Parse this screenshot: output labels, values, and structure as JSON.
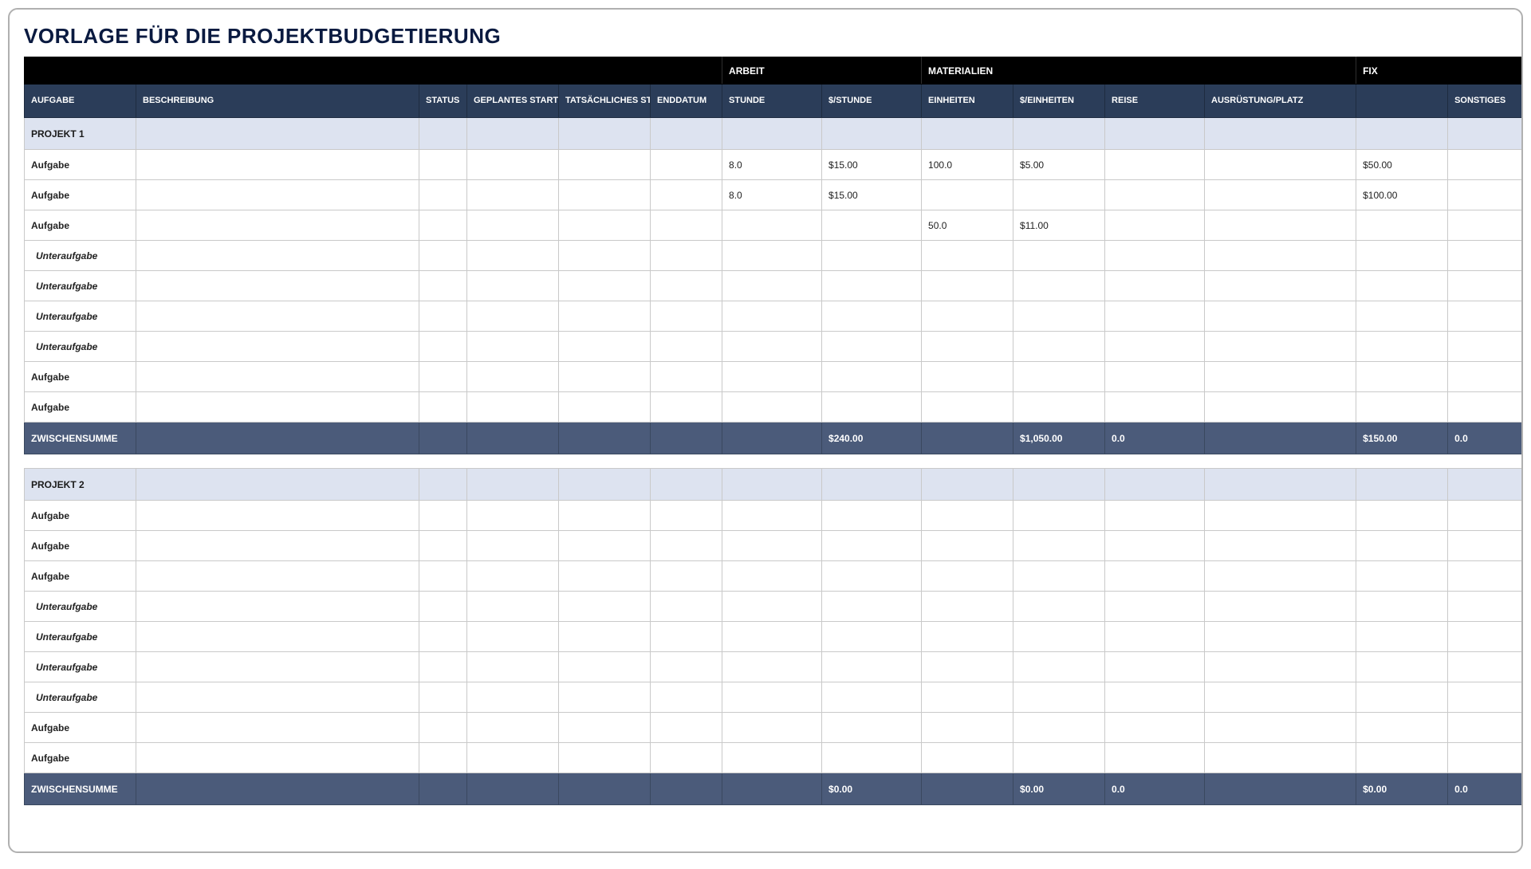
{
  "title": "VORLAGE FÜR DIE PROJEKTBUDGETIERUNG",
  "colors": {
    "group_header_bg": "#000000",
    "col_header_bg": "#2b3d59",
    "section_bg": "#dde3f0",
    "subtotal_bg": "#4b5b7a",
    "border": "#c9c9c9",
    "title_color": "#0a1a40"
  },
  "group_headers": {
    "blank1": "",
    "arbeit": "ARBEIT",
    "materialien": "MATERIALIEN",
    "fix": "FIX"
  },
  "columns": {
    "aufgabe": "AUFGABE",
    "beschreibung": "BESCHREIBUNG",
    "status": "STATUS",
    "geplantes_start": "GEPLANTES STARTDATUM",
    "tatsaechliches_start": "TATSÄCHLICHES STARTDATUM",
    "enddatum": "ENDDATUM",
    "stunde": "STUNDE",
    "pro_stunde": "$/STUNDE",
    "einheiten": "EINHEITEN",
    "pro_einheiten": "$/EINHEITEN",
    "reise": "REISE",
    "ausruestung": "AUSRÜSTUNG/PLATZ",
    "fix": "",
    "sonstiges": "SONSTIGES"
  },
  "labels": {
    "zwischensumme": "ZWISCHENSUMME",
    "aufgabe": "Aufgabe",
    "unteraufgabe": "Unteraufgabe"
  },
  "projects": [
    {
      "name": "PROJEKT 1",
      "rows": [
        {
          "type": "task",
          "aufgabe": "Aufgabe",
          "stunde": "8.0",
          "pro_stunde": "$15.00",
          "einheiten": "100.0",
          "pro_einheiten": "$5.00",
          "reise": "",
          "ausruestung": "",
          "fix": "$50.00",
          "sonstiges": ""
        },
        {
          "type": "task",
          "aufgabe": "Aufgabe",
          "stunde": "8.0",
          "pro_stunde": "$15.00",
          "einheiten": "",
          "pro_einheiten": "",
          "reise": "",
          "ausruestung": "",
          "fix": "$100.00",
          "sonstiges": ""
        },
        {
          "type": "task",
          "aufgabe": "Aufgabe",
          "stunde": "",
          "pro_stunde": "",
          "einheiten": "50.0",
          "pro_einheiten": "$11.00",
          "reise": "",
          "ausruestung": "",
          "fix": "",
          "sonstiges": ""
        },
        {
          "type": "subtask",
          "aufgabe": "Unteraufgabe",
          "stunde": "",
          "pro_stunde": "",
          "einheiten": "",
          "pro_einheiten": "",
          "reise": "",
          "ausruestung": "",
          "fix": "",
          "sonstiges": ""
        },
        {
          "type": "subtask",
          "aufgabe": "Unteraufgabe",
          "stunde": "",
          "pro_stunde": "",
          "einheiten": "",
          "pro_einheiten": "",
          "reise": "",
          "ausruestung": "",
          "fix": "",
          "sonstiges": ""
        },
        {
          "type": "subtask",
          "aufgabe": "Unteraufgabe",
          "stunde": "",
          "pro_stunde": "",
          "einheiten": "",
          "pro_einheiten": "",
          "reise": "",
          "ausruestung": "",
          "fix": "",
          "sonstiges": ""
        },
        {
          "type": "subtask",
          "aufgabe": "Unteraufgabe",
          "stunde": "",
          "pro_stunde": "",
          "einheiten": "",
          "pro_einheiten": "",
          "reise": "",
          "ausruestung": "",
          "fix": "",
          "sonstiges": ""
        },
        {
          "type": "task",
          "aufgabe": "Aufgabe",
          "stunde": "",
          "pro_stunde": "",
          "einheiten": "",
          "pro_einheiten": "",
          "reise": "",
          "ausruestung": "",
          "fix": "",
          "sonstiges": ""
        },
        {
          "type": "task",
          "aufgabe": "Aufgabe",
          "stunde": "",
          "pro_stunde": "",
          "einheiten": "",
          "pro_einheiten": "",
          "reise": "",
          "ausruestung": "",
          "fix": "",
          "sonstiges": ""
        }
      ],
      "subtotal": {
        "pro_stunde": "$240.00",
        "pro_einheiten": "$1,050.00",
        "reise": "0.0",
        "ausruestung": "",
        "fix": "$150.00",
        "sonstiges": "0.0"
      }
    },
    {
      "name": "PROJEKT 2",
      "rows": [
        {
          "type": "task",
          "aufgabe": "Aufgabe",
          "stunde": "",
          "pro_stunde": "",
          "einheiten": "",
          "pro_einheiten": "",
          "reise": "",
          "ausruestung": "",
          "fix": "",
          "sonstiges": ""
        },
        {
          "type": "task",
          "aufgabe": "Aufgabe",
          "stunde": "",
          "pro_stunde": "",
          "einheiten": "",
          "pro_einheiten": "",
          "reise": "",
          "ausruestung": "",
          "fix": "",
          "sonstiges": ""
        },
        {
          "type": "task",
          "aufgabe": "Aufgabe",
          "stunde": "",
          "pro_stunde": "",
          "einheiten": "",
          "pro_einheiten": "",
          "reise": "",
          "ausruestung": "",
          "fix": "",
          "sonstiges": ""
        },
        {
          "type": "subtask",
          "aufgabe": "Unteraufgabe",
          "stunde": "",
          "pro_stunde": "",
          "einheiten": "",
          "pro_einheiten": "",
          "reise": "",
          "ausruestung": "",
          "fix": "",
          "sonstiges": ""
        },
        {
          "type": "subtask",
          "aufgabe": "Unteraufgabe",
          "stunde": "",
          "pro_stunde": "",
          "einheiten": "",
          "pro_einheiten": "",
          "reise": "",
          "ausruestung": "",
          "fix": "",
          "sonstiges": ""
        },
        {
          "type": "subtask",
          "aufgabe": "Unteraufgabe",
          "stunde": "",
          "pro_stunde": "",
          "einheiten": "",
          "pro_einheiten": "",
          "reise": "",
          "ausruestung": "",
          "fix": "",
          "sonstiges": ""
        },
        {
          "type": "subtask",
          "aufgabe": "Unteraufgabe",
          "stunde": "",
          "pro_stunde": "",
          "einheiten": "",
          "pro_einheiten": "",
          "reise": "",
          "ausruestung": "",
          "fix": "",
          "sonstiges": ""
        },
        {
          "type": "task",
          "aufgabe": "Aufgabe",
          "stunde": "",
          "pro_stunde": "",
          "einheiten": "",
          "pro_einheiten": "",
          "reise": "",
          "ausruestung": "",
          "fix": "",
          "sonstiges": ""
        },
        {
          "type": "task",
          "aufgabe": "Aufgabe",
          "stunde": "",
          "pro_stunde": "",
          "einheiten": "",
          "pro_einheiten": "",
          "reise": "",
          "ausruestung": "",
          "fix": "",
          "sonstiges": ""
        }
      ],
      "subtotal": {
        "pro_stunde": "$0.00",
        "pro_einheiten": "$0.00",
        "reise": "0.0",
        "ausruestung": "",
        "fix": "$0.00",
        "sonstiges": "0.0"
      }
    }
  ]
}
